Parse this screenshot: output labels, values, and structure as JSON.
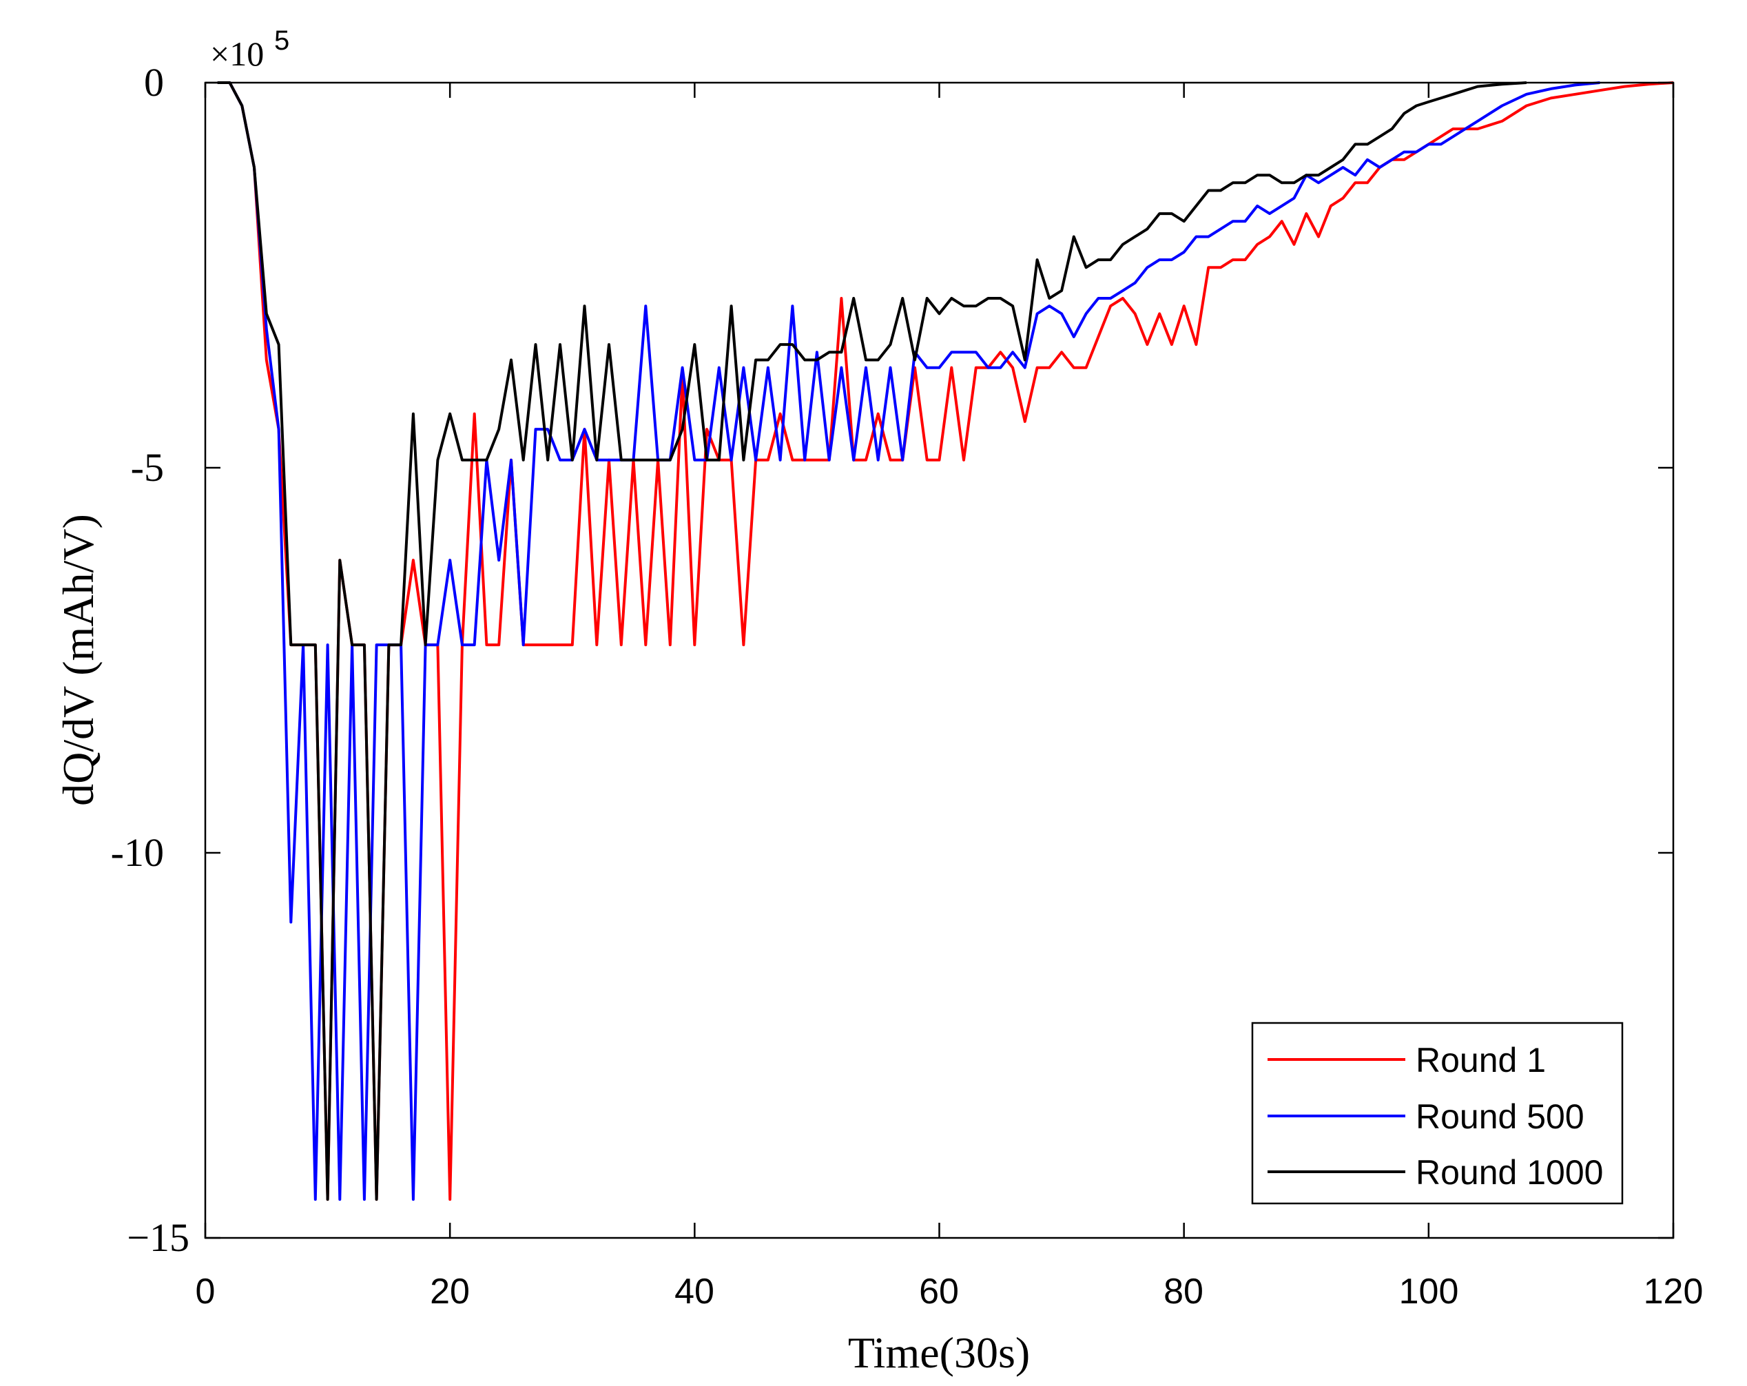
{
  "chart_data": {
    "type": "line",
    "title": "",
    "xlabel": "Time(30s)",
    "ylabel": "dQ/dV (mAh/V)",
    "y_exponent_label": "×10",
    "y_exponent_power": "5",
    "xlim": [
      0,
      120
    ],
    "ylim": [
      -15,
      0
    ],
    "xticks": [
      0,
      20,
      40,
      60,
      80,
      100,
      120
    ],
    "xtick_labels": [
      "0",
      "20",
      "40",
      "60",
      "80",
      "100",
      "120"
    ],
    "yticks": [
      0,
      -5,
      -10,
      -15
    ],
    "ytick_labels": [
      "0",
      "-5",
      "-10",
      "−15"
    ],
    "grid": false,
    "legend_position": "bottom-right",
    "series": [
      {
        "name": "Round 1",
        "color": "#ff0000",
        "x": [
          1,
          2,
          3,
          4,
          5,
          6,
          7,
          8,
          9,
          10,
          11,
          12,
          13,
          14,
          15,
          16,
          17,
          18,
          19,
          20,
          21,
          22,
          23,
          24,
          25,
          26,
          27,
          28,
          29,
          30,
          31,
          32,
          33,
          34,
          35,
          36,
          37,
          38,
          39,
          40,
          41,
          42,
          43,
          44,
          45,
          46,
          47,
          48,
          49,
          50,
          51,
          52,
          53,
          54,
          55,
          56,
          57,
          58,
          59,
          60,
          61,
          62,
          63,
          64,
          65,
          66,
          67,
          68,
          69,
          70,
          71,
          72,
          73,
          74,
          75,
          76,
          77,
          78,
          79,
          80,
          81,
          82,
          83,
          84,
          85,
          86,
          87,
          88,
          89,
          90,
          91,
          92,
          93,
          94,
          95,
          96,
          97,
          98,
          99,
          100,
          102,
          104,
          106,
          108,
          110,
          112,
          114,
          116,
          118,
          120
        ],
        "values": [
          0,
          0,
          -0.3,
          -1.1,
          -3.6,
          -4.5,
          -7.3,
          -7.3,
          -7.3,
          -14.5,
          -6.2,
          -7.3,
          -7.3,
          -14.5,
          -7.3,
          -7.3,
          -6.2,
          -7.3,
          -7.3,
          -14.5,
          -7.3,
          -4.3,
          -7.3,
          -7.3,
          -4.9,
          -7.3,
          -7.3,
          -7.3,
          -7.3,
          -7.3,
          -4.5,
          -7.3,
          -4.9,
          -7.3,
          -4.9,
          -7.3,
          -4.9,
          -7.3,
          -3.8,
          -7.3,
          -4.5,
          -4.9,
          -4.9,
          -7.3,
          -4.9,
          -4.9,
          -4.3,
          -4.9,
          -4.9,
          -4.9,
          -4.9,
          -2.8,
          -4.9,
          -4.9,
          -4.3,
          -4.9,
          -4.9,
          -3.7,
          -4.9,
          -4.9,
          -3.7,
          -4.9,
          -3.7,
          -3.7,
          -3.5,
          -3.7,
          -4.4,
          -3.7,
          -3.7,
          -3.5,
          -3.7,
          -3.7,
          -3.3,
          -2.9,
          -2.8,
          -3.0,
          -3.4,
          -3.0,
          -3.4,
          -2.9,
          -3.4,
          -2.4,
          -2.4,
          -2.3,
          -2.3,
          -2.1,
          -2.0,
          -1.8,
          -2.1,
          -1.7,
          -2.0,
          -1.6,
          -1.5,
          -1.3,
          -1.3,
          -1.1,
          -1.0,
          -1.0,
          -0.9,
          -0.8,
          -0.6,
          -0.6,
          -0.5,
          -0.3,
          -0.2,
          -0.15,
          -0.1,
          -0.05,
          -0.02,
          0
        ]
      },
      {
        "name": "Round 500",
        "color": "#0000ff",
        "x": [
          1,
          2,
          3,
          4,
          5,
          6,
          7,
          8,
          9,
          10,
          11,
          12,
          13,
          14,
          15,
          16,
          17,
          18,
          19,
          20,
          21,
          22,
          23,
          24,
          25,
          26,
          27,
          28,
          29,
          30,
          31,
          32,
          33,
          34,
          35,
          36,
          37,
          38,
          39,
          40,
          41,
          42,
          43,
          44,
          45,
          46,
          47,
          48,
          49,
          50,
          51,
          52,
          53,
          54,
          55,
          56,
          57,
          58,
          59,
          60,
          61,
          62,
          63,
          64,
          65,
          66,
          67,
          68,
          69,
          70,
          71,
          72,
          73,
          74,
          75,
          76,
          77,
          78,
          79,
          80,
          81,
          82,
          83,
          84,
          85,
          86,
          87,
          88,
          89,
          90,
          91,
          92,
          93,
          94,
          95,
          96,
          97,
          98,
          99,
          100,
          101,
          102,
          103,
          104,
          106,
          108,
          110,
          112,
          114
        ],
        "values": [
          0,
          0,
          -0.3,
          -1.1,
          -3.2,
          -4.5,
          -10.9,
          -7.3,
          -14.5,
          -7.3,
          -14.5,
          -7.3,
          -14.5,
          -7.3,
          -7.3,
          -7.3,
          -14.5,
          -7.3,
          -7.3,
          -6.2,
          -7.3,
          -7.3,
          -4.9,
          -6.2,
          -4.9,
          -7.3,
          -4.5,
          -4.5,
          -4.9,
          -4.9,
          -4.5,
          -4.9,
          -4.9,
          -4.9,
          -4.9,
          -2.9,
          -4.9,
          -4.9,
          -3.7,
          -4.9,
          -4.9,
          -3.7,
          -4.9,
          -3.7,
          -4.9,
          -3.7,
          -4.9,
          -2.9,
          -4.9,
          -3.5,
          -4.9,
          -3.7,
          -4.9,
          -3.7,
          -4.9,
          -3.7,
          -4.9,
          -3.5,
          -3.7,
          -3.7,
          -3.5,
          -3.5,
          -3.5,
          -3.7,
          -3.7,
          -3.5,
          -3.7,
          -3.0,
          -2.9,
          -3.0,
          -3.3,
          -3.0,
          -2.8,
          -2.8,
          -2.7,
          -2.6,
          -2.4,
          -2.3,
          -2.3,
          -2.2,
          -2.0,
          -2.0,
          -1.9,
          -1.8,
          -1.8,
          -1.6,
          -1.7,
          -1.6,
          -1.5,
          -1.2,
          -1.3,
          -1.2,
          -1.1,
          -1.2,
          -1.0,
          -1.1,
          -1.0,
          -0.9,
          -0.9,
          -0.8,
          -0.8,
          -0.7,
          -0.6,
          -0.5,
          -0.3,
          -0.15,
          -0.08,
          -0.03,
          0
        ]
      },
      {
        "name": "Round 1000",
        "color": "#000000",
        "x": [
          1,
          2,
          3,
          4,
          5,
          6,
          7,
          8,
          9,
          10,
          11,
          12,
          13,
          14,
          15,
          16,
          17,
          18,
          19,
          20,
          21,
          22,
          23,
          24,
          25,
          26,
          27,
          28,
          29,
          30,
          31,
          32,
          33,
          34,
          35,
          36,
          37,
          38,
          39,
          40,
          41,
          42,
          43,
          44,
          45,
          46,
          47,
          48,
          49,
          50,
          51,
          52,
          53,
          54,
          55,
          56,
          57,
          58,
          59,
          60,
          61,
          62,
          63,
          64,
          65,
          66,
          67,
          68,
          69,
          70,
          71,
          72,
          73,
          74,
          75,
          76,
          77,
          78,
          79,
          80,
          81,
          82,
          83,
          84,
          85,
          86,
          87,
          88,
          89,
          90,
          91,
          92,
          93,
          94,
          95,
          96,
          97,
          98,
          99,
          100,
          101,
          102,
          103,
          104,
          106,
          108
        ],
        "values": [
          0,
          0,
          -0.3,
          -1.1,
          -3.0,
          -3.4,
          -7.3,
          -7.3,
          -7.3,
          -14.5,
          -6.2,
          -7.3,
          -7.3,
          -14.5,
          -7.3,
          -7.3,
          -4.3,
          -7.3,
          -4.9,
          -4.3,
          -4.9,
          -4.9,
          -4.9,
          -4.5,
          -3.6,
          -4.9,
          -3.4,
          -4.9,
          -3.4,
          -4.9,
          -2.9,
          -4.9,
          -3.4,
          -4.9,
          -4.9,
          -4.9,
          -4.9,
          -4.9,
          -4.5,
          -3.4,
          -4.9,
          -4.9,
          -2.9,
          -4.9,
          -3.6,
          -3.6,
          -3.4,
          -3.4,
          -3.6,
          -3.6,
          -3.5,
          -3.5,
          -2.8,
          -3.6,
          -3.6,
          -3.4,
          -2.8,
          -3.6,
          -2.8,
          -3.0,
          -2.8,
          -2.9,
          -2.9,
          -2.8,
          -2.8,
          -2.9,
          -3.6,
          -2.3,
          -2.8,
          -2.7,
          -2.0,
          -2.4,
          -2.3,
          -2.3,
          -2.1,
          -2.0,
          -1.9,
          -1.7,
          -1.7,
          -1.8,
          -1.6,
          -1.4,
          -1.4,
          -1.3,
          -1.3,
          -1.2,
          -1.2,
          -1.3,
          -1.3,
          -1.2,
          -1.2,
          -1.1,
          -1.0,
          -0.8,
          -0.8,
          -0.7,
          -0.6,
          -0.4,
          -0.3,
          -0.25,
          -0.2,
          -0.15,
          -0.1,
          -0.05,
          -0.02,
          0
        ]
      }
    ]
  }
}
